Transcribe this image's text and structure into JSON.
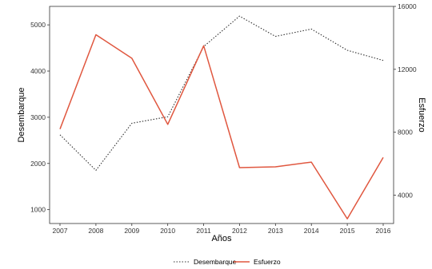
{
  "chart_data": {
    "type": "line",
    "x": [
      2007,
      2008,
      2009,
      2010,
      2011,
      2012,
      2013,
      2014,
      2015,
      2016
    ],
    "xlabel": "Años",
    "ylabel": "Desembarque",
    "y2label": "Esfuerzo",
    "ylim": [
      700,
      5400
    ],
    "y2lim": [
      2200,
      16000
    ],
    "yticks": [
      1000,
      2000,
      3000,
      4000,
      5000
    ],
    "y2ticks": [
      4000,
      8000,
      12000,
      16000
    ],
    "grid": false,
    "legend_position": "bottom",
    "series": [
      {
        "name": "Desembarque",
        "axis": "left",
        "style": "dotted",
        "color": "#333333",
        "values": [
          2620,
          1850,
          2870,
          3010,
          4530,
          5190,
          4750,
          4910,
          4450,
          4230
        ]
      },
      {
        "name": "Esfuerzo",
        "axis": "right",
        "style": "solid",
        "color": "#e0573f",
        "values": [
          8200,
          14200,
          12700,
          8500,
          13500,
          5750,
          5800,
          6100,
          2500,
          6400
        ]
      }
    ]
  }
}
